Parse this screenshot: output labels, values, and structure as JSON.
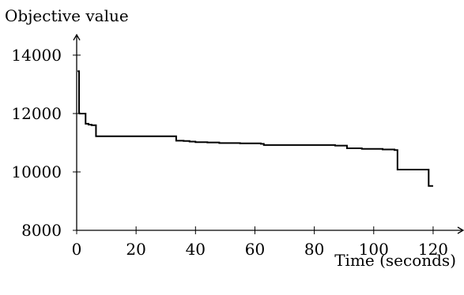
{
  "chart_data": {
    "type": "line",
    "title": "",
    "ylabel": "Objective value",
    "xlabel": "Time (seconds)",
    "xlim": [
      0,
      128
    ],
    "ylim": [
      8000,
      14700
    ],
    "xticks": [
      0,
      20,
      40,
      60,
      80,
      100,
      120
    ],
    "yticks": [
      8000,
      10000,
      12000,
      14000
    ],
    "grid": false,
    "legend": "none",
    "step": true,
    "series": [
      {
        "x": [
          0.3,
          0.8,
          1.0,
          3.0,
          4.0,
          5.0,
          6.5,
          33.0,
          33.5,
          36.0,
          38.0,
          40.0,
          44.0,
          48.0,
          55.0,
          62.0,
          63.0,
          70.0,
          80.0,
          87.0,
          91.0,
          96.0,
          103.0,
          107.0,
          108.0,
          118.0,
          118.5,
          120.0
        ],
        "y": [
          13450,
          12010,
          12000,
          11650,
          11620,
          11600,
          11220,
          11220,
          11070,
          11060,
          11040,
          11020,
          11010,
          10990,
          10980,
          10960,
          10920,
          10920,
          10920,
          10900,
          10810,
          10790,
          10770,
          10750,
          10080,
          10080,
          9520,
          9520
        ]
      }
    ]
  }
}
